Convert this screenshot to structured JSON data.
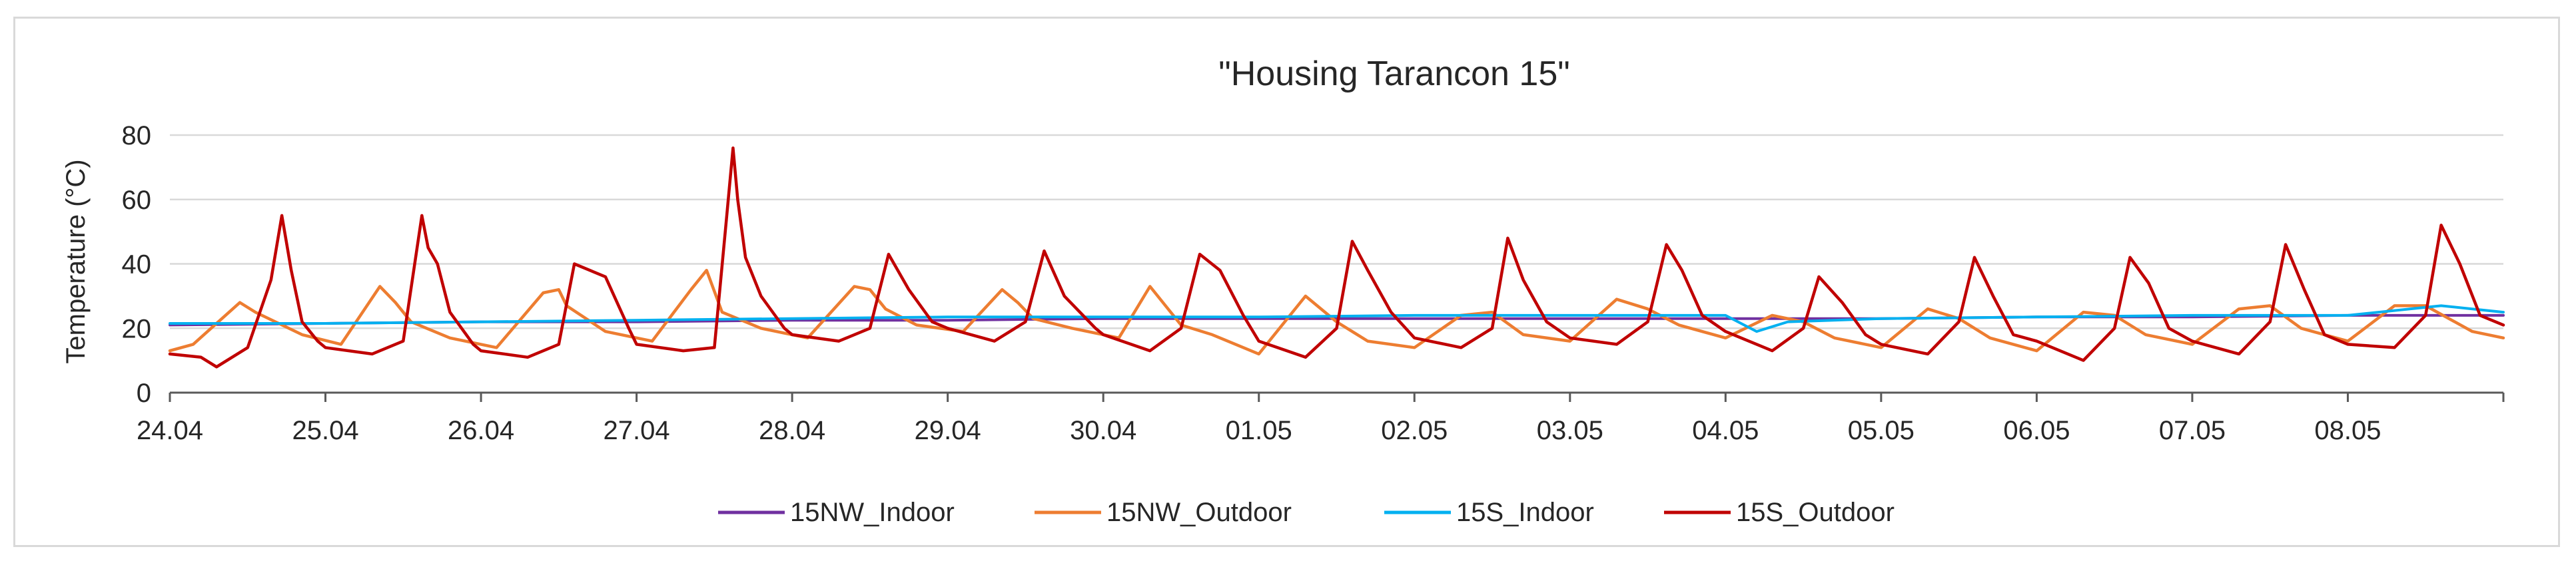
{
  "chart_data": {
    "type": "line",
    "title": "\"Housing Tarancon 15\"",
    "xlabel": "",
    "ylabel": "Temperature (°C)",
    "ylim": [
      0,
      80
    ],
    "yticks": [
      0,
      20,
      40,
      60,
      80
    ],
    "x_unit": "days since 24.04 00:00",
    "xlim": [
      0,
      15
    ],
    "xtick_labels": [
      "24.04",
      "25.04",
      "26.04",
      "27.04",
      "28.04",
      "29.04",
      "30.04",
      "01.05",
      "02.05",
      "03.05",
      "04.05",
      "05.05",
      "06.05",
      "07.05",
      "08.05"
    ],
    "grid": "horizontal",
    "legend_position": "bottom",
    "series": [
      {
        "name": "15NW_Indoor",
        "color": "#7030a0",
        "x": [
          0,
          1,
          2,
          3,
          4,
          5,
          6,
          7,
          8,
          9,
          10,
          11,
          12,
          13,
          14,
          15
        ],
        "values": [
          21,
          21.5,
          22,
          22,
          22.5,
          22.5,
          23,
          23,
          23,
          23,
          23,
          23,
          23.5,
          23.5,
          24,
          24
        ]
      },
      {
        "name": "15NW_Outdoor",
        "color": "#ed7d31",
        "x": [
          0,
          0.15,
          0.45,
          0.55,
          0.85,
          1.1,
          1.35,
          1.45,
          1.55,
          1.8,
          2.1,
          2.4,
          2.5,
          2.55,
          2.8,
          3.1,
          3.35,
          3.45,
          3.55,
          3.8,
          4.1,
          4.4,
          4.5,
          4.6,
          4.8,
          5.1,
          5.35,
          5.45,
          5.55,
          5.8,
          6.1,
          6.3,
          6.4,
          6.5,
          6.7,
          7.0,
          7.3,
          7.5,
          7.7,
          8.0,
          8.3,
          8.5,
          8.7,
          9.0,
          9.3,
          9.5,
          9.7,
          10.0,
          10.3,
          10.5,
          10.7,
          11.0,
          11.3,
          11.5,
          11.7,
          12.0,
          12.3,
          12.5,
          12.7,
          13.0,
          13.3,
          13.5,
          13.7,
          14.0,
          14.3,
          14.5,
          14.8,
          15.0
        ],
        "values": [
          13,
          15,
          28,
          25,
          18,
          15,
          33,
          28,
          22,
          17,
          14,
          31,
          32,
          27,
          19,
          16,
          32,
          38,
          25,
          20,
          17,
          33,
          32,
          26,
          21,
          19,
          32,
          28,
          23,
          20,
          17,
          33,
          27,
          21,
          18,
          12,
          30,
          22,
          16,
          14,
          24,
          25,
          18,
          16,
          29,
          26,
          21,
          17,
          24,
          22,
          17,
          14,
          26,
          23,
          17,
          13,
          25,
          24,
          18,
          15,
          26,
          27,
          20,
          16,
          27,
          27,
          19,
          17
        ]
      },
      {
        "name": "15S_Indoor",
        "color": "#00b0f0",
        "x": [
          0,
          1,
          2,
          3,
          4,
          5,
          6,
          7,
          8,
          9,
          10,
          10.2,
          10.4,
          11,
          12,
          13,
          14,
          14.6,
          14.8,
          15
        ],
        "values": [
          21.5,
          21.5,
          22,
          22.5,
          23,
          23.5,
          23.5,
          23.5,
          24,
          24,
          24,
          19,
          22,
          23,
          23.5,
          24,
          24,
          27,
          26,
          25
        ]
      },
      {
        "name": "15S_Outdoor",
        "color": "#c00000",
        "x": [
          0,
          0.2,
          0.3,
          0.5,
          0.65,
          0.72,
          0.78,
          0.85,
          0.95,
          1.0,
          1.3,
          1.5,
          1.62,
          1.66,
          1.72,
          1.8,
          1.95,
          2.0,
          2.3,
          2.5,
          2.6,
          2.8,
          2.95,
          3.0,
          3.3,
          3.5,
          3.58,
          3.62,
          3.65,
          3.7,
          3.8,
          3.95,
          4.0,
          4.3,
          4.5,
          4.62,
          4.75,
          4.9,
          5.0,
          5.3,
          5.5,
          5.62,
          5.75,
          5.95,
          6.0,
          6.3,
          6.5,
          6.62,
          6.75,
          6.9,
          7.0,
          7.3,
          7.5,
          7.6,
          7.7,
          7.85,
          8.0,
          8.3,
          8.5,
          8.6,
          8.7,
          8.85,
          9.0,
          9.3,
          9.5,
          9.62,
          9.72,
          9.85,
          10.0,
          10.3,
          10.5,
          10.6,
          10.75,
          10.9,
          11.0,
          11.3,
          11.5,
          11.6,
          11.72,
          11.85,
          12.0,
          12.3,
          12.5,
          12.6,
          12.72,
          12.85,
          13.0,
          13.3,
          13.5,
          13.6,
          13.72,
          13.85,
          14.0,
          14.3,
          14.5,
          14.6,
          14.72,
          14.85,
          15.0
        ],
        "values": [
          12,
          11,
          8,
          14,
          35,
          55,
          38,
          22,
          16,
          14,
          12,
          16,
          55,
          45,
          40,
          25,
          15,
          13,
          11,
          15,
          40,
          36,
          20,
          15,
          13,
          14,
          55,
          76,
          60,
          42,
          30,
          20,
          18,
          16,
          20,
          43,
          32,
          22,
          20,
          16,
          22,
          44,
          30,
          20,
          18,
          13,
          20,
          43,
          38,
          24,
          16,
          11,
          20,
          47,
          38,
          25,
          17,
          14,
          20,
          48,
          35,
          22,
          17,
          15,
          22,
          46,
          38,
          24,
          19,
          13,
          20,
          36,
          28,
          18,
          15,
          12,
          22,
          42,
          30,
          18,
          16,
          10,
          20,
          42,
          34,
          20,
          16,
          12,
          22,
          46,
          32,
          18,
          15,
          14,
          24,
          52,
          40,
          24,
          21
        ]
      }
    ]
  }
}
